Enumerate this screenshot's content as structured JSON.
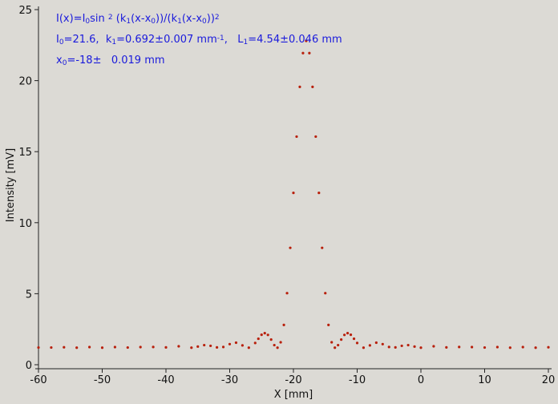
{
  "chart_data": {
    "type": "scatter",
    "x_label": "X [mm]",
    "y_label": "Intensity [mV]",
    "annotations": [
      [
        {
          "text": "I(x)=I"
        },
        {
          "text": "0",
          "sub": true
        },
        {
          "text": "sin "
        },
        {
          "text": "2",
          "sup": true
        },
        {
          "text": " (k"
        },
        {
          "text": "1",
          "sub": true
        },
        {
          "text": "(x-x"
        },
        {
          "text": "0",
          "sub": true
        },
        {
          "text": "))/(k"
        },
        {
          "text": "1",
          "sub": true
        },
        {
          "text": "(x-x"
        },
        {
          "text": "0",
          "sub": true
        },
        {
          "text": "))"
        },
        {
          "text": "2",
          "sup": true
        }
      ],
      [
        {
          "text": "I"
        },
        {
          "text": "0",
          "sub": true
        },
        {
          "text": "=21.6,  k"
        },
        {
          "text": "1",
          "sub": true
        },
        {
          "text": "=0.692±0.007 mm"
        },
        {
          "text": "-1",
          "sup": true
        },
        {
          "text": ",   L"
        },
        {
          "text": "1",
          "sub": true
        },
        {
          "text": "=4.54±0.046 mm"
        }
      ],
      [
        {
          "text": "x"
        },
        {
          "text": "0",
          "sub": true
        },
        {
          "text": "=-18±   0.019 mm"
        }
      ]
    ],
    "annotation_color": "#1a1adc",
    "color": "#b8200c",
    "x": [
      -60,
      -58,
      -56,
      -54,
      -52,
      -50,
      -48,
      -46,
      -44,
      -42,
      -40,
      -38,
      -36,
      -35,
      -34,
      -33,
      -32,
      -31,
      -30,
      -29,
      -28,
      -27,
      -26,
      -25.5,
      -25,
      -24.5,
      -24,
      -23.5,
      -23,
      -22.5,
      -22,
      -21.5,
      -21,
      -20.5,
      -20,
      -19.5,
      -19,
      -18.5,
      -18,
      -17.5,
      -17,
      -16.5,
      -16,
      -15.5,
      -15,
      -14.5,
      -14,
      -13.5,
      -13,
      -12.5,
      -12,
      -11.5,
      -11,
      -10.5,
      -10,
      -9,
      -8,
      -7,
      -6,
      -5,
      -4,
      -3,
      -2,
      -1,
      0,
      2,
      4,
      6,
      8,
      10,
      12,
      14,
      16,
      18,
      20
    ],
    "y": [
      1.21,
      1.21,
      1.23,
      1.2,
      1.24,
      1.2,
      1.24,
      1.21,
      1.24,
      1.25,
      1.22,
      1.3,
      1.2,
      1.28,
      1.38,
      1.33,
      1.22,
      1.25,
      1.45,
      1.55,
      1.36,
      1.2,
      1.53,
      1.83,
      2.11,
      2.22,
      2.1,
      1.77,
      1.38,
      1.2,
      1.58,
      2.8,
      5.04,
      8.23,
      12.1,
      16.06,
      19.56,
      21.94,
      22.8,
      21.94,
      19.56,
      16.06,
      12.1,
      8.23,
      5.04,
      2.8,
      1.58,
      1.2,
      1.38,
      1.77,
      2.1,
      2.22,
      2.11,
      1.83,
      1.53,
      1.2,
      1.36,
      1.55,
      1.45,
      1.25,
      1.22,
      1.33,
      1.38,
      1.28,
      1.2,
      1.3,
      1.22,
      1.25,
      1.24,
      1.21,
      1.24,
      1.2,
      1.24,
      1.2,
      1.23
    ],
    "xlim": [
      -60,
      20
    ],
    "ylim": [
      0,
      25
    ],
    "xticks": [
      -60,
      -50,
      -40,
      -30,
      -20,
      -10,
      0,
      10,
      20
    ],
    "yticks": [
      0,
      5,
      10,
      15,
      20,
      25
    ]
  }
}
